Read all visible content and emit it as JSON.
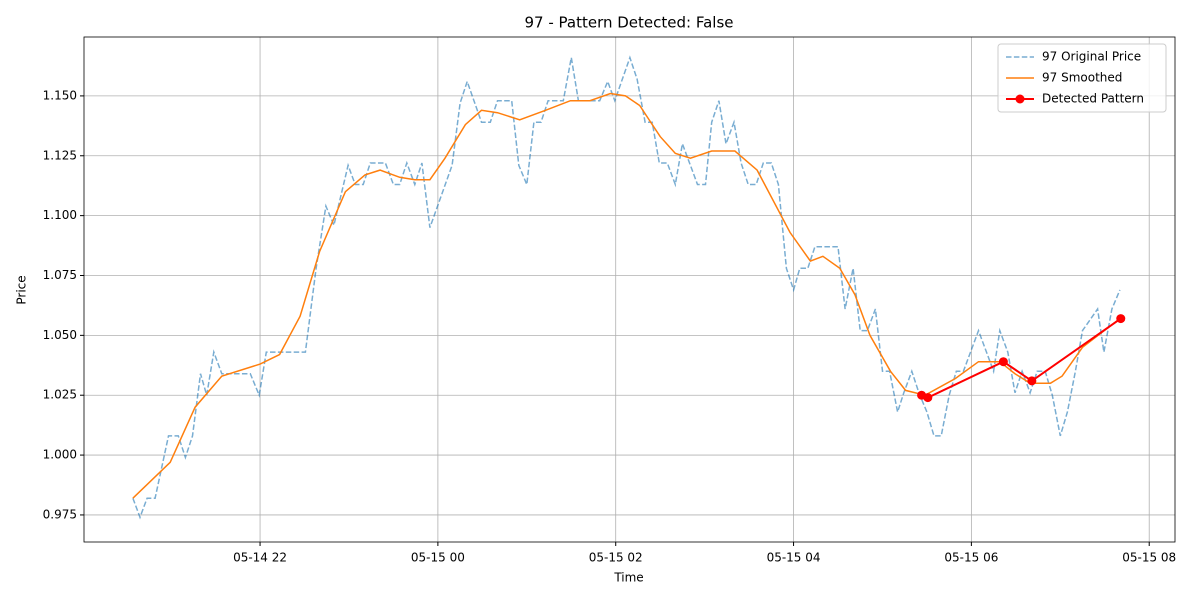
{
  "chart_data": {
    "type": "line",
    "title": "97 - Pattern Detected: False",
    "x_label": "Time",
    "y_label": "Price",
    "xlim": [
      20.02,
      32.29
    ],
    "xticks": [
      {
        "value": 22,
        "label": "05-14 22"
      },
      {
        "value": 24,
        "label": "05-15 00"
      },
      {
        "value": 26,
        "label": "05-15 02"
      },
      {
        "value": 28,
        "label": "05-15 04"
      },
      {
        "value": 30,
        "label": "05-15 06"
      },
      {
        "value": 32,
        "label": "05-15 08"
      }
    ],
    "ylim": [
      0.9637,
      1.1746
    ],
    "yticks": [
      {
        "value": 0.975,
        "label": "0.975"
      },
      {
        "value": 1.0,
        "label": "1.000"
      },
      {
        "value": 1.025,
        "label": "1.025"
      },
      {
        "value": 1.05,
        "label": "1.050"
      },
      {
        "value": 1.075,
        "label": "1.075"
      },
      {
        "value": 1.1,
        "label": "1.100"
      },
      {
        "value": 1.125,
        "label": "1.125"
      },
      {
        "value": 1.15,
        "label": "1.150"
      }
    ],
    "grid": true,
    "legend": "upper right",
    "series": [
      {
        "name": "97 Original Price",
        "color": "#1f77b4",
        "style": "dashed",
        "x": [
          20.57,
          20.65,
          20.73,
          20.82,
          20.97,
          21.08,
          21.16,
          21.24,
          21.33,
          21.4,
          21.48,
          21.57,
          21.89,
          21.99,
          22.07,
          22.51,
          22.63,
          22.74,
          22.83,
          22.99,
          23.07,
          23.16,
          23.24,
          23.41,
          23.5,
          23.57,
          23.65,
          23.74,
          23.82,
          23.91,
          24.16,
          24.25,
          24.33,
          24.49,
          24.59,
          24.67,
          24.83,
          24.91,
          25.0,
          25.08,
          25.16,
          25.24,
          25.41,
          25.5,
          25.58,
          25.82,
          25.91,
          25.99,
          26.16,
          26.24,
          26.33,
          26.41,
          26.49,
          26.58,
          26.67,
          26.75,
          26.84,
          26.92,
          27.01,
          27.08,
          27.16,
          27.24,
          27.33,
          27.41,
          27.49,
          27.58,
          27.66,
          27.75,
          27.83,
          27.92,
          28.0,
          28.07,
          28.16,
          28.24,
          28.5,
          28.58,
          28.67,
          28.75,
          28.83,
          28.92,
          29.0,
          29.08,
          29.17,
          29.24,
          29.33,
          29.41,
          29.5,
          29.58,
          29.66,
          29.75,
          29.83,
          29.91,
          30.08,
          30.25,
          30.32,
          30.41,
          30.49,
          30.57,
          30.66,
          30.74,
          30.83,
          30.91,
          31.0,
          31.08,
          31.17,
          31.25,
          31.42,
          31.49,
          31.58,
          31.67
        ],
        "values": [
          0.982,
          0.974,
          0.982,
          0.982,
          1.008,
          1.008,
          0.999,
          1.008,
          1.034,
          1.025,
          1.043,
          1.034,
          1.034,
          1.025,
          1.043,
          1.043,
          1.078,
          1.104,
          1.096,
          1.121,
          1.113,
          1.113,
          1.122,
          1.122,
          1.113,
          1.113,
          1.122,
          1.113,
          1.122,
          1.095,
          1.121,
          1.147,
          1.156,
          1.139,
          1.139,
          1.148,
          1.148,
          1.121,
          1.113,
          1.139,
          1.139,
          1.148,
          1.148,
          1.166,
          1.148,
          1.148,
          1.156,
          1.148,
          1.166,
          1.157,
          1.139,
          1.139,
          1.122,
          1.122,
          1.113,
          1.13,
          1.121,
          1.113,
          1.113,
          1.139,
          1.148,
          1.13,
          1.139,
          1.122,
          1.113,
          1.113,
          1.122,
          1.122,
          1.113,
          1.078,
          1.069,
          1.078,
          1.078,
          1.087,
          1.087,
          1.061,
          1.078,
          1.052,
          1.052,
          1.061,
          1.035,
          1.035,
          1.018,
          1.026,
          1.035,
          1.026,
          1.018,
          1.008,
          1.008,
          1.025,
          1.035,
          1.035,
          1.052,
          1.035,
          1.052,
          1.043,
          1.026,
          1.035,
          1.026,
          1.035,
          1.035,
          1.025,
          1.008,
          1.018,
          1.035,
          1.052,
          1.061,
          1.043,
          1.061,
          1.069
        ]
      },
      {
        "name": "97 Smoothed",
        "color": "#ff7f0e",
        "style": "solid",
        "x": [
          20.57,
          20.99,
          21.27,
          21.57,
          22.0,
          22.22,
          22.45,
          22.67,
          22.96,
          23.18,
          23.35,
          23.57,
          23.74,
          23.91,
          24.08,
          24.31,
          24.49,
          24.67,
          24.92,
          25.21,
          25.49,
          25.71,
          25.94,
          26.11,
          26.27,
          26.5,
          26.67,
          26.84,
          27.08,
          27.34,
          27.59,
          27.96,
          28.19,
          28.33,
          28.52,
          28.69,
          28.86,
          29.09,
          29.26,
          29.48,
          29.82,
          30.08,
          30.32,
          30.49,
          30.66,
          30.89,
          31.02,
          31.25,
          31.67
        ],
        "values": [
          0.982,
          0.997,
          1.02,
          1.033,
          1.038,
          1.042,
          1.058,
          1.085,
          1.11,
          1.117,
          1.119,
          1.116,
          1.115,
          1.115,
          1.124,
          1.138,
          1.144,
          1.143,
          1.14,
          1.144,
          1.148,
          1.148,
          1.151,
          1.15,
          1.146,
          1.133,
          1.126,
          1.124,
          1.127,
          1.127,
          1.119,
          1.093,
          1.081,
          1.083,
          1.078,
          1.067,
          1.05,
          1.035,
          1.027,
          1.025,
          1.032,
          1.039,
          1.039,
          1.034,
          1.03,
          1.03,
          1.033,
          1.045,
          1.057
        ]
      },
      {
        "name": "Detected Pattern",
        "color": "#ff0000",
        "style": "solid",
        "marker": "o",
        "x": [
          29.44,
          29.51,
          30.36,
          30.68,
          31.68
        ],
        "values": [
          1.025,
          1.024,
          1.039,
          1.031,
          1.057
        ]
      }
    ]
  }
}
